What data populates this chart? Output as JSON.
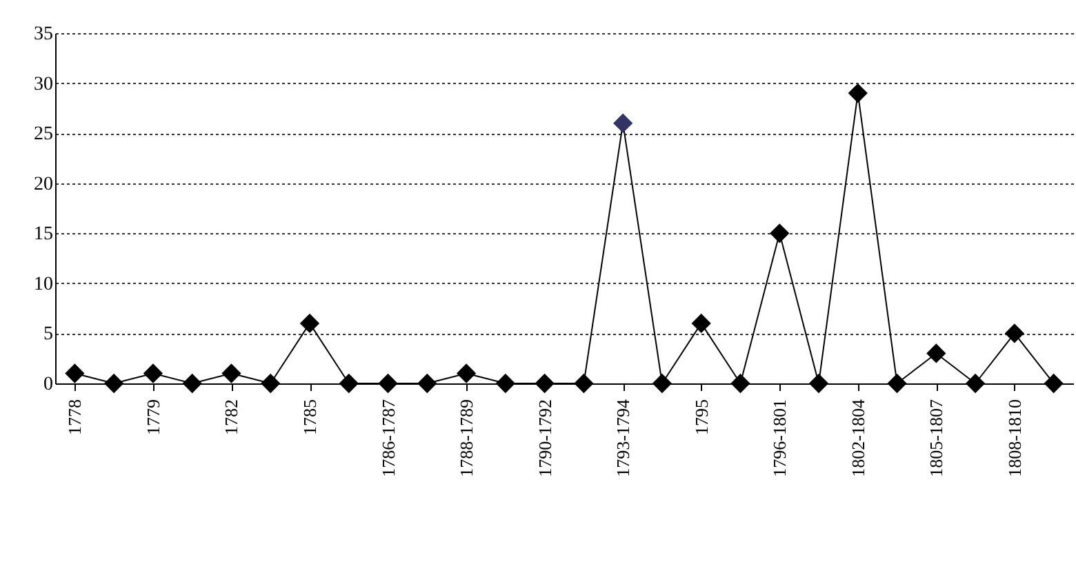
{
  "chart_data": {
    "type": "line",
    "categories": [
      "1778",
      null,
      "1779",
      null,
      "1782",
      null,
      "1785",
      null,
      "1786-1787",
      null,
      "1788-1789",
      null,
      "1790-1792",
      null,
      "1793-1794",
      null,
      "1795",
      null,
      "1796-1801",
      null,
      "1802-1804",
      null,
      "1805-1807",
      null,
      "1808-1810",
      null
    ],
    "series": [
      {
        "color": "#000000",
        "values": [
          1,
          0,
          1,
          0,
          1,
          0,
          6,
          0,
          0,
          0,
          1,
          0,
          0,
          0,
          26,
          0,
          6,
          0,
          15,
          0,
          29,
          0,
          3,
          0,
          5,
          0
        ],
        "colors": [
          "#000000",
          "#000000",
          "#000000",
          "#000000",
          "#000000",
          "#000000",
          "#000000",
          "#000000",
          "#000000",
          "#000000",
          "#000000",
          "#000000",
          "#000000",
          "#000000",
          "#333366",
          "#000000",
          "#000000",
          "#000000",
          "#000000",
          "#000000",
          "#000000",
          "#000000",
          "#000000",
          "#000000",
          "#000000",
          "#000000"
        ]
      }
    ],
    "ylim": [
      0,
      35
    ],
    "yticks": [
      0,
      5,
      10,
      15,
      20,
      25,
      30,
      35
    ],
    "grid": "y",
    "marker": "diamond",
    "line_style": "solid"
  }
}
